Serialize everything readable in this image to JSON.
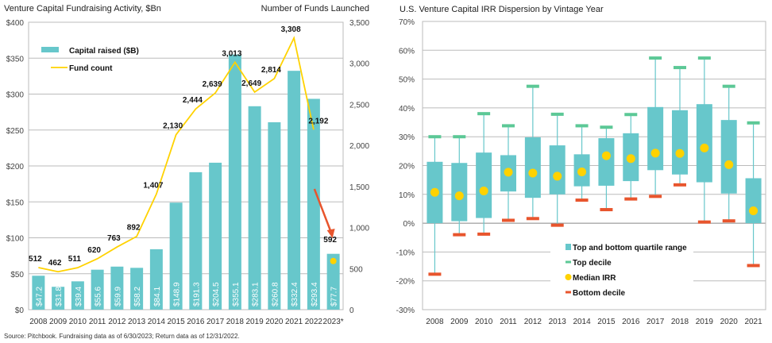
{
  "source_note": "Source: Pitchbook. Fundraising data as of 6/30/2023; Return data as of 12/31/2022.",
  "chart_data": [
    {
      "type": "bar",
      "title": "Venture Capital Fundraising Activity, $Bn",
      "y2label": "Number of Funds Launched",
      "categories": [
        "2008",
        "2009",
        "2010",
        "2011",
        "2012",
        "2013",
        "2014",
        "2015",
        "2016",
        "2017",
        "2018",
        "2019",
        "2020",
        "2021",
        "2022",
        "2023*"
      ],
      "ylim": [
        0,
        400
      ],
      "yticks": [
        "$0",
        "$50",
        "$100",
        "$150",
        "$200",
        "$250",
        "$300",
        "$350",
        "$400"
      ],
      "y2lim": [
        0,
        3500
      ],
      "y2ticks": [
        "0",
        "500",
        "1,000",
        "1,500",
        "2,000",
        "2,500",
        "3,000",
        "3,500"
      ],
      "grid": true,
      "legend_placement": "top-left",
      "series": [
        {
          "name": "Capital raised ($B)",
          "type": "bar",
          "color": "#67c7cb",
          "values": [
            47.2,
            31.8,
            39.4,
            55.6,
            59.9,
            58.2,
            84.1,
            148.9,
            191.3,
            204.5,
            355.1,
            283.1,
            260.8,
            332.4,
            293.4,
            77.7
          ],
          "labels": [
            "$47.2",
            "$31.8",
            "$39.4",
            "$55.6",
            "$59.9",
            "$58.2",
            "$84.1",
            "$148.9",
            "$191.3",
            "$204.5",
            "$355.1",
            "$283.1",
            "$260.8",
            "$332.4",
            "$293.4",
            "$77.7"
          ]
        },
        {
          "name": "Fund count",
          "type": "line",
          "axis": "right",
          "color": "#ffd200",
          "values": [
            512,
            462,
            511,
            620,
            763,
            892,
            1407,
            2130,
            2444,
            2639,
            3013,
            2649,
            2814,
            3308,
            2192,
            592
          ],
          "labels": [
            "512",
            "462",
            "511",
            "620",
            "763",
            "892",
            "1,407",
            "2,130",
            "2,444",
            "2,639",
            "3,013",
            "2,649",
            "2,814",
            "3,308",
            "2,192",
            "592"
          ]
        }
      ],
      "annotation_arrow_color": "#e8552d"
    },
    {
      "type": "box",
      "title": "U.S. Venture Capital IRR Dispersion by Vintage Year",
      "categories": [
        "2008",
        "2009",
        "2010",
        "2011",
        "2012",
        "2013",
        "2014",
        "2015",
        "2016",
        "2017",
        "2018",
        "2019",
        "2020",
        "2021"
      ],
      "ylim": [
        -30,
        70
      ],
      "yticks": [
        "-30%",
        "-20%",
        "-10%",
        "0%",
        "10%",
        "20%",
        "30%",
        "40%",
        "50%",
        "60%",
        "70%"
      ],
      "grid": true,
      "legend_placement": "bottom-center",
      "legend": [
        "Top and bottom quartile range",
        "Top decile",
        "Median IRR",
        "Bottom decile"
      ],
      "colors": {
        "box": "#67c7cb",
        "top_decile": "#5cc896",
        "median": "#ffd200",
        "bottom_decile": "#e8552d"
      },
      "top_decile": [
        30,
        30,
        38,
        33.8,
        47.5,
        37.8,
        33.8,
        33.3,
        37.7,
        57.3,
        54,
        57.3,
        47.5,
        34.8
      ],
      "top_quartile": [
        21.3,
        20.9,
        24.5,
        23.6,
        29.8,
        27,
        23.9,
        29.5,
        31.2,
        40.3,
        39.2,
        41.3,
        35.8,
        15.6
      ],
      "median": [
        10.7,
        9.5,
        11.2,
        17.7,
        17.4,
        16.3,
        17.8,
        23.4,
        22.4,
        24.3,
        24.2,
        26.1,
        20.3,
        4.3
      ],
      "bottom_quartile": [
        0,
        0.7,
        1.8,
        11,
        8.8,
        10,
        12.8,
        13,
        14.6,
        18.4,
        16.9,
        14.2,
        10.3,
        0
      ],
      "bottom_decile": [
        -17.7,
        -4,
        -3.8,
        1,
        1.6,
        -0.7,
        8,
        4.7,
        8.4,
        9.3,
        13.3,
        0.4,
        0.8,
        -14.7
      ]
    }
  ]
}
